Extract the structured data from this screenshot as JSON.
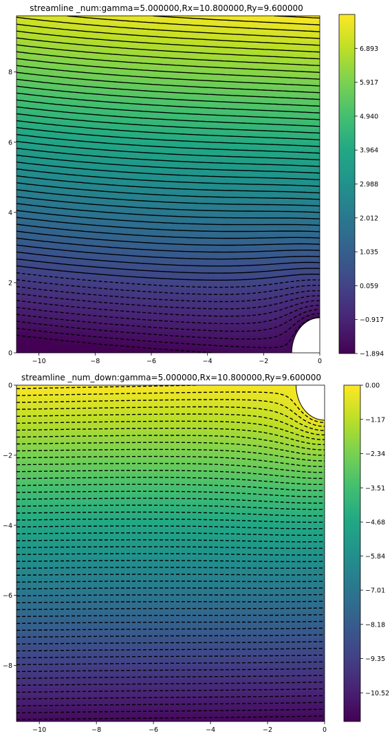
{
  "chart_data": [
    {
      "type": "heatmap",
      "title": "streamline _num:gamma=5.000000,Rx=10.800000,Ry=9.600000",
      "xlabel": "",
      "ylabel": "",
      "xlim": [
        -10.8,
        0
      ],
      "ylim": [
        0,
        9.6
      ],
      "x_ticks": [
        "−10",
        "−8",
        "−6",
        "−4",
        "−2",
        "0"
      ],
      "x_tick_values": [
        -10,
        -8,
        -6,
        -4,
        -2,
        0
      ],
      "y_ticks": [
        "0",
        "2",
        "4",
        "6",
        "8"
      ],
      "y_tick_values": [
        0,
        2,
        4,
        6,
        8
      ],
      "colormap": "viridis",
      "colorbar_range": [
        -1.894,
        7.869
      ],
      "colorbar_ticks": [
        "−1.894",
        "−0.917",
        "0.059",
        "1.035",
        "2.012",
        "2.988",
        "3.964",
        "4.940",
        "5.917",
        "6.893"
      ],
      "colorbar_tick_values": [
        -1.894,
        -0.917,
        0.059,
        1.035,
        2.012,
        2.988,
        3.964,
        4.94,
        5.917,
        6.893
      ],
      "obstacle": {
        "shape": "circle",
        "center": [
          0,
          0
        ],
        "radius": 1
      },
      "contours": {
        "min": -1.894,
        "max": 7.869,
        "count": 50,
        "negative_style": "dashed",
        "positive_style": "solid",
        "color": "#000000"
      }
    },
    {
      "type": "heatmap",
      "title": "streamline _num_down:gamma=5.000000,Rx=10.800000,Ry=9.600000",
      "xlabel": "",
      "ylabel": "",
      "xlim": [
        -10.8,
        0
      ],
      "ylim": [
        -9.6,
        0
      ],
      "x_ticks": [
        "−10",
        "−8",
        "−6",
        "−4",
        "−2",
        "0"
      ],
      "x_tick_values": [
        -10,
        -8,
        -6,
        -4,
        -2,
        0
      ],
      "y_ticks": [
        "0",
        "−2",
        "−4",
        "−6",
        "−8"
      ],
      "y_tick_values": [
        0,
        -2,
        -4,
        -6,
        -8
      ],
      "colormap": "viridis",
      "colorbar_range": [
        -11.5,
        0
      ],
      "colorbar_ticks": [
        "0.00",
        "−1.17",
        "−2.34",
        "−3.51",
        "−4.68",
        "−5.84",
        "−7.01",
        "−8.18",
        "−9.35",
        "−10.52"
      ],
      "colorbar_tick_values": [
        0,
        -1.17,
        -2.34,
        -3.51,
        -4.68,
        -5.84,
        -7.01,
        -8.18,
        -9.35,
        -10.52
      ],
      "obstacle": {
        "shape": "circle",
        "center": [
          0,
          0
        ],
        "radius": 1
      },
      "contours": {
        "min": -11.5,
        "max": 0,
        "count": 50,
        "negative_style": "dashed",
        "positive_style": "solid",
        "color": "#000000"
      }
    }
  ]
}
